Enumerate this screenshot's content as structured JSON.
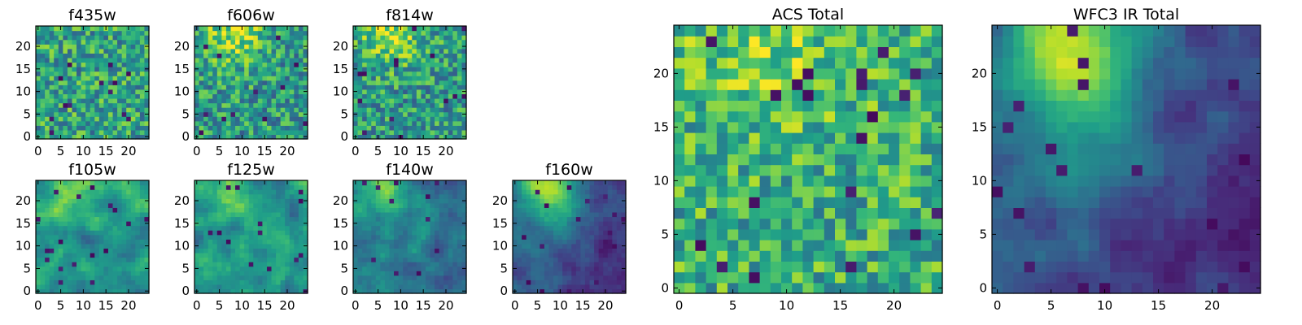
{
  "chart_data": [
    {
      "type": "heatmap",
      "title": "f435w",
      "size": 25,
      "xticks": [
        0,
        5,
        10,
        15,
        20
      ],
      "yticks": [
        0,
        5,
        10,
        15,
        20
      ],
      "xlim": [
        -0.5,
        24.5
      ],
      "ylim": [
        -0.5,
        24.5
      ],
      "pattern": "noise",
      "value_range": [
        0,
        1
      ],
      "colormap": "viridis"
    },
    {
      "type": "heatmap",
      "title": "f606w",
      "size": 25,
      "xticks": [
        0,
        5,
        10,
        15,
        20
      ],
      "yticks": [
        0,
        5,
        10,
        15,
        20
      ],
      "xlim": [
        -0.5,
        24.5
      ],
      "ylim": [
        -0.5,
        24.5
      ],
      "pattern": "noise-top-bright",
      "value_range": [
        0,
        1
      ],
      "colormap": "viridis"
    },
    {
      "type": "heatmap",
      "title": "f814w",
      "size": 25,
      "xticks": [
        0,
        5,
        10,
        15,
        20
      ],
      "yticks": [
        0,
        5,
        10,
        15,
        20
      ],
      "xlim": [
        -0.5,
        24.5
      ],
      "ylim": [
        -0.5,
        24.5
      ],
      "pattern": "noise-top-bright",
      "value_range": [
        0,
        1
      ],
      "colormap": "viridis"
    },
    {
      "type": "heatmap",
      "title": "f105w",
      "size": 25,
      "xticks": [
        0,
        5,
        10,
        15,
        20
      ],
      "yticks": [
        0,
        5,
        10,
        15,
        20
      ],
      "xlim": [
        -0.5,
        24.5
      ],
      "ylim": [
        -0.5,
        24.5
      ],
      "pattern": "smooth-bright",
      "value_range": [
        0,
        1
      ],
      "colormap": "viridis"
    },
    {
      "type": "heatmap",
      "title": "f125w",
      "size": 25,
      "xticks": [
        0,
        5,
        10,
        15,
        20
      ],
      "yticks": [
        0,
        5,
        10,
        15,
        20
      ],
      "xlim": [
        -0.5,
        24.5
      ],
      "ylim": [
        -0.5,
        24.5
      ],
      "pattern": "smooth-bright",
      "value_range": [
        0,
        1
      ],
      "colormap": "viridis"
    },
    {
      "type": "heatmap",
      "title": "f140w",
      "size": 25,
      "xticks": [
        0,
        5,
        10,
        15,
        20
      ],
      "yticks": [
        0,
        5,
        10,
        15,
        20
      ],
      "xlim": [
        -0.5,
        24.5
      ],
      "ylim": [
        -0.5,
        24.5
      ],
      "pattern": "smooth-mid",
      "value_range": [
        0,
        1
      ],
      "colormap": "viridis"
    },
    {
      "type": "heatmap",
      "title": "f160w",
      "size": 25,
      "xticks": [
        0,
        5,
        10,
        15,
        20
      ],
      "yticks": [
        0,
        5,
        10,
        15,
        20
      ],
      "xlim": [
        -0.5,
        24.5
      ],
      "ylim": [
        -0.5,
        24.5
      ],
      "pattern": "smooth-dark",
      "value_range": [
        0,
        1
      ],
      "colormap": "viridis"
    },
    {
      "type": "heatmap",
      "title": "ACS Total",
      "size": 25,
      "xticks": [
        0,
        5,
        10,
        15,
        20
      ],
      "yticks": [
        0,
        5,
        10,
        15,
        20
      ],
      "xlim": [
        -0.5,
        24.5
      ],
      "ylim": [
        -0.5,
        24.5
      ],
      "pattern": "noise-bright",
      "value_range": [
        0,
        1
      ],
      "colormap": "viridis"
    },
    {
      "type": "heatmap",
      "title": "WFC3 IR Total",
      "size": 25,
      "xticks": [
        0,
        5,
        10,
        15,
        20
      ],
      "yticks": [
        0,
        5,
        10,
        15,
        20
      ],
      "xlim": [
        -0.5,
        24.5
      ],
      "ylim": [
        -0.5,
        24.5
      ],
      "pattern": "smooth-dark",
      "value_range": [
        0,
        1
      ],
      "colormap": "viridis"
    }
  ]
}
